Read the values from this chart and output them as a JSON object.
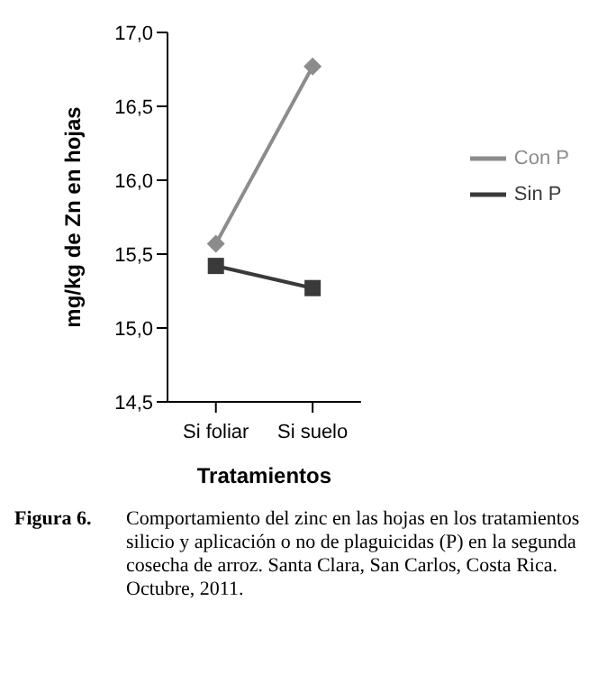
{
  "chart_data": {
    "type": "line",
    "xlabel": "Tratamientos",
    "ylabel": "mg/kg de Zn en hojas",
    "categories": [
      "Si foliar",
      "Si suelo"
    ],
    "series": [
      {
        "name": "Con P",
        "color": "#8c8c8c",
        "marker": "diamond",
        "values": [
          15.57,
          16.77
        ]
      },
      {
        "name": "Sin P",
        "color": "#3a3a3a",
        "marker": "square",
        "values": [
          15.42,
          15.27
        ]
      }
    ],
    "ylim": [
      14.5,
      17.0
    ],
    "yticks": [
      {
        "value": 14.5,
        "label": "14,5"
      },
      {
        "value": 15,
        "label": "15,0"
      },
      {
        "value": 15.5,
        "label": "15,5"
      },
      {
        "value": 16,
        "label": "16,0"
      },
      {
        "value": 16.5,
        "label": "16,5"
      },
      {
        "value": 17,
        "label": "17,0"
      }
    ],
    "grid": false,
    "legend": "right",
    "annotations": [
      "Figura 6.",
      "Comportamiento del zinc en las hojas en los tratamientos silicio y aplicación o no de plaguicidas (P) en la segunda cosecha de arroz. Santa Clara, San Carlos, Costa Rica. Octubre, 2011."
    ]
  }
}
